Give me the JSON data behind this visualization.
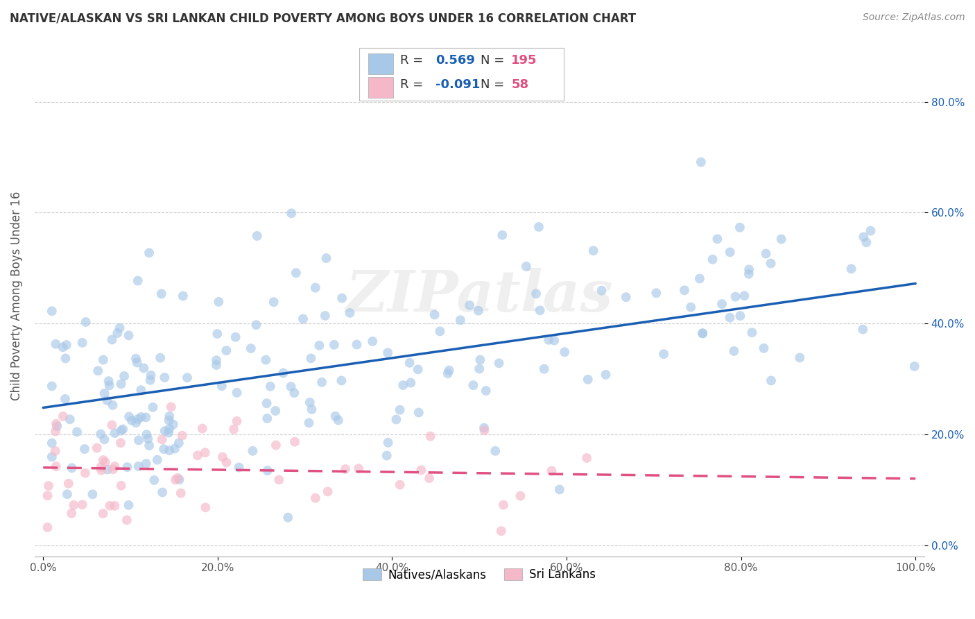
{
  "title": "NATIVE/ALASKAN VS SRI LANKAN CHILD POVERTY AMONG BOYS UNDER 16 CORRELATION CHART",
  "source": "Source: ZipAtlas.com",
  "ylabel": "Child Poverty Among Boys Under 16",
  "xlabel": "",
  "xlim": [
    -0.01,
    1.01
  ],
  "ylim": [
    -0.02,
    0.92
  ],
  "xticks": [
    0.0,
    0.2,
    0.4,
    0.6,
    0.8,
    1.0
  ],
  "xtick_labels": [
    "0.0%",
    "20.0%",
    "40.0%",
    "60.0%",
    "80.0%",
    "100.0%"
  ],
  "yticks": [
    0.0,
    0.2,
    0.4,
    0.6,
    0.8
  ],
  "ytick_labels": [
    "0.0%",
    "20.0%",
    "40.0%",
    "60.0%",
    "80.0%"
  ],
  "native_color": "#a8c8e8",
  "native_color_line": "#1a5fb4",
  "sri_color": "#f4b8c8",
  "sri_color_line": "#e05080",
  "native_R": 0.569,
  "native_N": 195,
  "sri_R": -0.091,
  "sri_N": 58,
  "watermark": "ZIPatlas",
  "legend_native": "Natives/Alaskans",
  "legend_sri": "Sri Lankans",
  "title_fontsize": 12,
  "source_fontsize": 10,
  "ylabel_fontsize": 12,
  "tick_fontsize": 11,
  "scatter_size": 100,
  "scatter_alpha": 0.65,
  "line_width": 2.5,
  "nat_line_start_y": 0.248,
  "nat_line_end_y": 0.472,
  "sri_line_start_y": 0.14,
  "sri_line_end_y": 0.12
}
